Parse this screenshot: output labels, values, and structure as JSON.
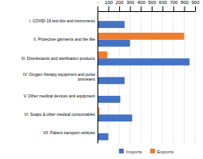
{
  "chart_data": {
    "type": "bar",
    "orientation": "horizontal",
    "categories": [
      "I. COVID-19 test kits and instruments",
      "II. Protective garments and the like",
      "III. Disinfectants and sterilisation products",
      "IV. Oxygen therapy equipment and pulse\noximeters",
      "V. Other medical devices and equipment",
      "VI. Soaps & other medical consumables",
      "VII. Patient transport vehicles"
    ],
    "series": [
      {
        "name": "Imports",
        "color": "#4472C4",
        "values": [
          250,
          300,
          850,
          250,
          210,
          320,
          100
        ]
      },
      {
        "name": "Exports",
        "color": "#ED7D31",
        "values": [
          0,
          800,
          90,
          0,
          8,
          18,
          0
        ]
      }
    ],
    "xlim": [
      0,
      900
    ],
    "xticks": [
      {
        "value": 0,
        "label": "-"
      },
      100,
      200,
      300,
      400,
      500,
      600,
      700,
      800,
      900
    ],
    "grid": true,
    "legend": "bottom"
  }
}
